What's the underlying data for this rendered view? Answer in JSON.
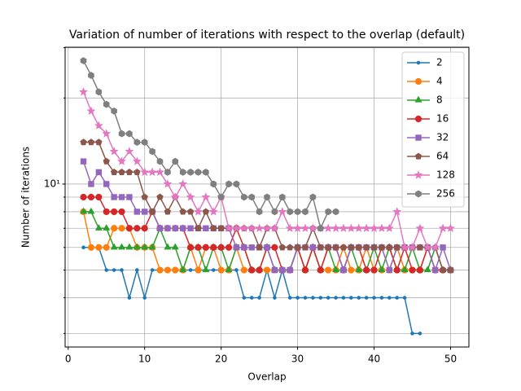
{
  "chart_data": {
    "type": "line",
    "title": "Variation of number of iterations with respect to the overlap (default)",
    "xlabel": "Overlap",
    "ylabel": "Number of iterations",
    "x": [
      2,
      3,
      4,
      5,
      6,
      7,
      8,
      9,
      10,
      11,
      12,
      13,
      14,
      15,
      16,
      17,
      18,
      19,
      20,
      21,
      22,
      23,
      24,
      25,
      26,
      27,
      28,
      29,
      30,
      31,
      32,
      33,
      34,
      35,
      36,
      37,
      38,
      39,
      40,
      41,
      42,
      43,
      44,
      45,
      46,
      47,
      48,
      49,
      50
    ],
    "xlim": [
      -0.4,
      52.4
    ],
    "xticks": [
      0,
      10,
      20,
      30,
      40,
      50
    ],
    "ylim": [
      2.69,
      30.1
    ],
    "yscale": "log",
    "yticks": [
      {
        "value": 10,
        "label": "10¹"
      }
    ],
    "yminorticks": [
      3,
      4,
      5,
      6,
      7,
      8,
      9,
      20,
      30
    ],
    "grid": true,
    "legend": "upper right",
    "series": [
      {
        "name": "2",
        "color": "#1f77b4",
        "marker": "point",
        "values": [
          6,
          6,
          6,
          5,
          5,
          5,
          4,
          5,
          4,
          5,
          5,
          5,
          5,
          5,
          5,
          5,
          5,
          5,
          5,
          5,
          5,
          4,
          4,
          4,
          5,
          4,
          5,
          4,
          4,
          4,
          4,
          4,
          4,
          4,
          4,
          4,
          4,
          4,
          4,
          4,
          4,
          4,
          4,
          3,
          3,
          null,
          null,
          null,
          null
        ]
      },
      {
        "name": "4",
        "color": "#ff7f0e",
        "marker": "circle",
        "values": [
          8,
          6,
          6,
          6,
          7,
          7,
          7,
          6,
          6,
          6,
          5,
          5,
          5,
          5,
          6,
          5,
          6,
          6,
          5,
          5,
          6,
          5,
          5,
          5,
          5,
          5,
          5,
          5,
          6,
          5,
          6,
          5,
          5,
          5,
          6,
          5,
          5,
          6,
          5,
          5,
          5,
          6,
          5,
          5,
          5,
          6,
          5,
          5,
          5
        ]
      },
      {
        "name": "8",
        "color": "#2ca02c",
        "marker": "triangle",
        "values": [
          8,
          8,
          7,
          7,
          6,
          6,
          6,
          6,
          6,
          6,
          7,
          6,
          6,
          5,
          6,
          6,
          5,
          6,
          6,
          5,
          6,
          6,
          5,
          5,
          6,
          5,
          5,
          5,
          6,
          5,
          6,
          5,
          6,
          5,
          5,
          6,
          5,
          5,
          6,
          5,
          6,
          5,
          5,
          6,
          5,
          5,
          6,
          5,
          5
        ]
      },
      {
        "name": "16",
        "color": "#d62728",
        "marker": "circle",
        "values": [
          9,
          9,
          9,
          8,
          8,
          8,
          7,
          7,
          7,
          8,
          7,
          7,
          7,
          7,
          6,
          6,
          6,
          6,
          6,
          6,
          7,
          6,
          5,
          5,
          6,
          6,
          5,
          5,
          6,
          5,
          6,
          5,
          6,
          6,
          5,
          6,
          6,
          5,
          5,
          6,
          6,
          5,
          6,
          5,
          5,
          6,
          5,
          5,
          5
        ]
      },
      {
        "name": "32",
        "color": "#9467bd",
        "marker": "square",
        "values": [
          12,
          10,
          11,
          10,
          9,
          9,
          9,
          8,
          8,
          8,
          7,
          7,
          7,
          7,
          7,
          7,
          7,
          7,
          7,
          7,
          6,
          6,
          6,
          6,
          6,
          5,
          5,
          5,
          6,
          6,
          6,
          6,
          6,
          6,
          5,
          6,
          6,
          6,
          6,
          6,
          5,
          6,
          6,
          6,
          6,
          6,
          5,
          6,
          5
        ]
      },
      {
        "name": "64",
        "color": "#8c564b",
        "marker": "pentagon",
        "values": [
          14,
          14,
          14,
          12,
          11,
          11,
          11,
          11,
          9,
          8,
          9,
          8,
          9,
          8,
          8,
          7,
          8,
          7,
          7,
          7,
          7,
          7,
          7,
          6,
          7,
          7,
          6,
          6,
          6,
          6,
          7,
          6,
          6,
          6,
          6,
          6,
          6,
          6,
          6,
          6,
          6,
          6,
          6,
          6,
          6,
          6,
          6,
          5,
          5
        ]
      },
      {
        "name": "128",
        "color": "#e377c2",
        "marker": "star",
        "values": [
          21,
          18,
          16,
          15,
          13,
          12,
          13,
          12,
          11,
          11,
          11,
          10,
          9,
          10,
          9,
          8,
          9,
          8,
          9,
          7,
          7,
          7,
          7,
          7,
          7,
          7,
          8,
          7,
          7,
          7,
          7,
          7,
          7,
          7,
          7,
          7,
          7,
          7,
          7,
          7,
          7,
          8,
          6,
          6,
          7,
          6,
          6,
          7,
          7
        ]
      },
      {
        "name": "256",
        "color": "#7f7f7f",
        "marker": "hexagon",
        "values": [
          27,
          24,
          21,
          19,
          18,
          15,
          15,
          14,
          14,
          13,
          12,
          11,
          12,
          11,
          11,
          11,
          11,
          10,
          9,
          10,
          10,
          9,
          9,
          8,
          9,
          8,
          9,
          8,
          8,
          8,
          9,
          7,
          8,
          8,
          null,
          null,
          null,
          null,
          null,
          null,
          null,
          null,
          null,
          null,
          null,
          null,
          null,
          null,
          null
        ]
      }
    ]
  }
}
